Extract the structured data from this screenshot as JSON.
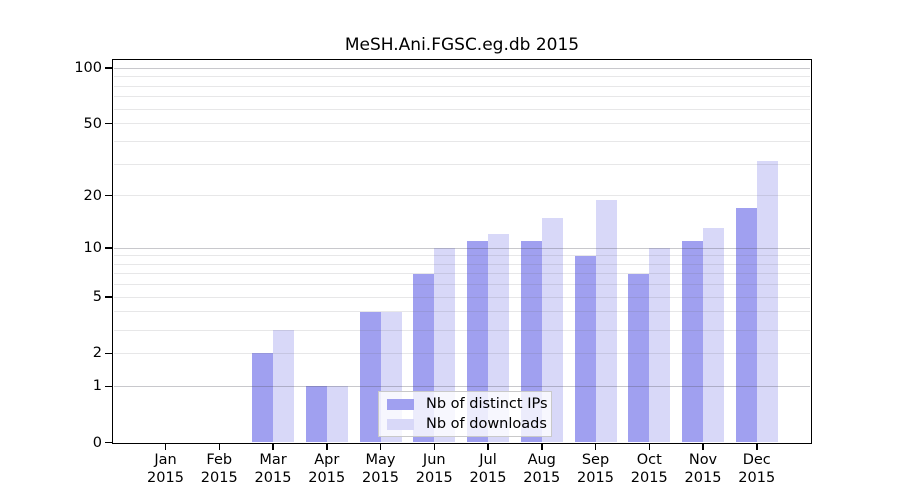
{
  "chart": {
    "title": "MeSH.Ani.FGSC.eg.db 2015"
  },
  "colors": {
    "bar_distinct_ips": "#a0a0f0",
    "bar_downloads": "#d8d8f8",
    "gridline_major": "#cdcdcd",
    "gridline_minor": "#eaeaea",
    "axis": "#000000",
    "background": "#ffffff"
  },
  "chart_data": {
    "type": "bar",
    "title": "MeSH.Ani.FGSC.eg.db 2015",
    "months": [
      "Jan",
      "Feb",
      "Mar",
      "Apr",
      "May",
      "Jun",
      "Jul",
      "Aug",
      "Sep",
      "Oct",
      "Nov",
      "Dec"
    ],
    "year": "2015",
    "categories": [
      "Jan 2015",
      "Feb 2015",
      "Mar 2015",
      "Apr 2015",
      "May 2015",
      "Jun 2015",
      "Jul 2015",
      "Aug 2015",
      "Sep 2015",
      "Oct 2015",
      "Nov 2015",
      "Dec 2015"
    ],
    "series": [
      {
        "name": "Nb of distinct IPs",
        "color": "#a0a0f0",
        "values": [
          0,
          0,
          2,
          1,
          4,
          7,
          11,
          11,
          9,
          7,
          11,
          17
        ]
      },
      {
        "name": "Nb of downloads",
        "color": "#d8d8f8",
        "values": [
          0,
          0,
          3,
          1,
          4,
          10,
          12,
          15,
          19,
          10,
          13,
          31
        ]
      }
    ],
    "yscale": "log1p",
    "ylim": [
      0,
      112
    ],
    "yticks": [
      0,
      1,
      2,
      5,
      10,
      20,
      50,
      100
    ],
    "gridlines": [
      1,
      2,
      3,
      4,
      5,
      6,
      7,
      8,
      9,
      10,
      20,
      30,
      40,
      50,
      60,
      70,
      80,
      90,
      100
    ],
    "major_gridlines": [
      1,
      10,
      100
    ],
    "grid": true,
    "legend_position": "bottom-center-inside",
    "xlabel": "",
    "ylabel": ""
  }
}
